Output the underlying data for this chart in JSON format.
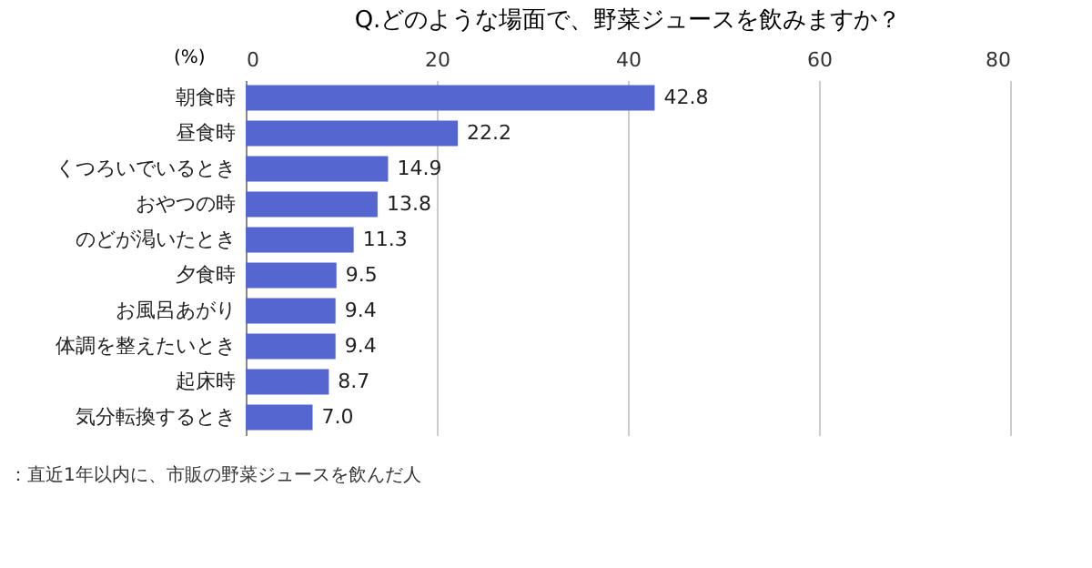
{
  "chart_data": {
    "type": "bar",
    "orientation": "horizontal",
    "title": "Q.どのような場面で、野菜ジュースを飲みますか？",
    "xlabel": "(%)",
    "categories": [
      "朝食時",
      "昼食時",
      "くつろいでいるとき",
      "おやつの時",
      "のどが渇いたとき",
      "夕食時",
      "お風呂あがり",
      "体調を整えたいとき",
      "起床時",
      "気分転換するとき"
    ],
    "values": [
      42.8,
      22.2,
      14.9,
      13.8,
      11.3,
      9.5,
      9.4,
      9.4,
      8.7,
      7.0
    ],
    "value_labels": [
      "42.8",
      "22.2",
      "14.9",
      "13.8",
      "11.3",
      "9.5",
      "9.4",
      "9.4",
      "8.7",
      "7.0"
    ],
    "color": "#5566d0",
    "xlim": [
      0,
      80
    ],
    "xticks": [
      0,
      20,
      40,
      60,
      80
    ],
    "grid": "x",
    "annotations": [
      "：直近1年以内に、市販の野菜ジュースを飲んだ人"
    ]
  }
}
